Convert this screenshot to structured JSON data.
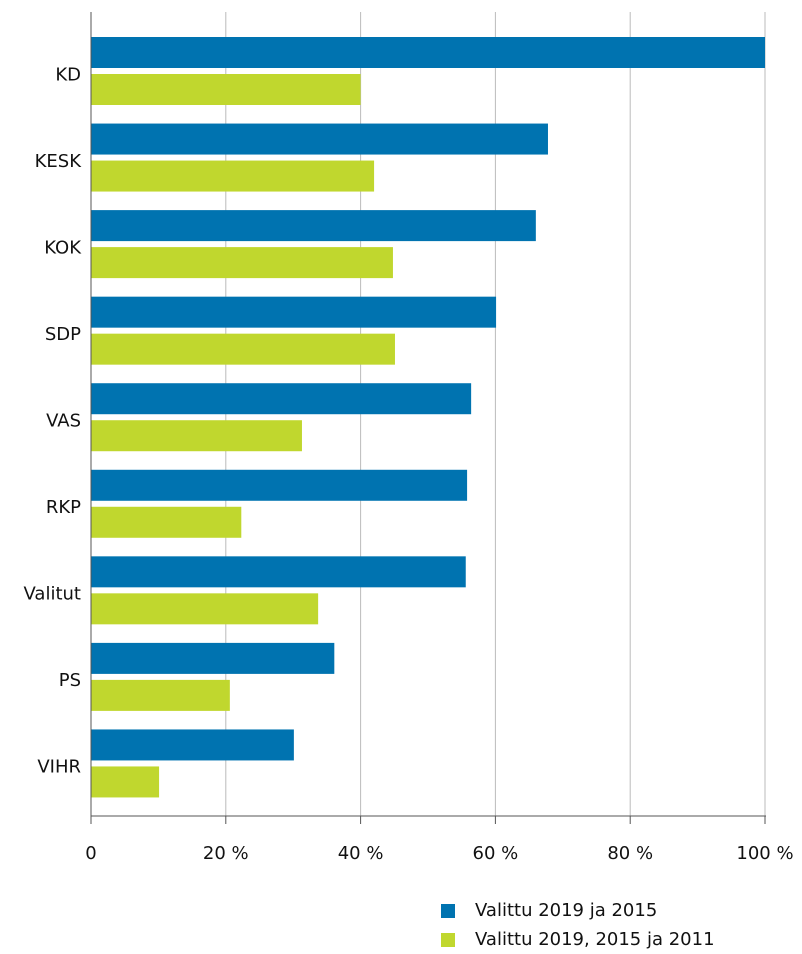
{
  "chart_data": {
    "type": "bar",
    "orientation": "horizontal",
    "categories": [
      "KD",
      "KESK",
      "KOK",
      "SDP",
      "VAS",
      "RKP",
      "Valitut",
      "PS",
      "VIHR"
    ],
    "series": [
      {
        "name": "Valittu 2019 ja 2015",
        "color": "#0073b0",
        "values": [
          100,
          67.8,
          66.0,
          60.1,
          56.4,
          55.8,
          55.6,
          36.1,
          30.1
        ]
      },
      {
        "name": "Valittu 2019, 2015 ja 2011",
        "color": "#c0d72e",
        "values": [
          40.0,
          42.0,
          44.8,
          45.1,
          31.3,
          22.3,
          33.7,
          20.6,
          10.1
        ]
      }
    ],
    "xlim": [
      0,
      100
    ],
    "xticks": [
      0,
      {
        "value": 20,
        "label": "20 %"
      },
      {
        "value": 40,
        "label": "40 %"
      },
      {
        "value": 60,
        "label": "60 %"
      },
      {
        "value": 80,
        "label": "80 %"
      },
      {
        "value": 100,
        "label": "100 %"
      }
    ],
    "grid": true,
    "legend": "bottom"
  }
}
